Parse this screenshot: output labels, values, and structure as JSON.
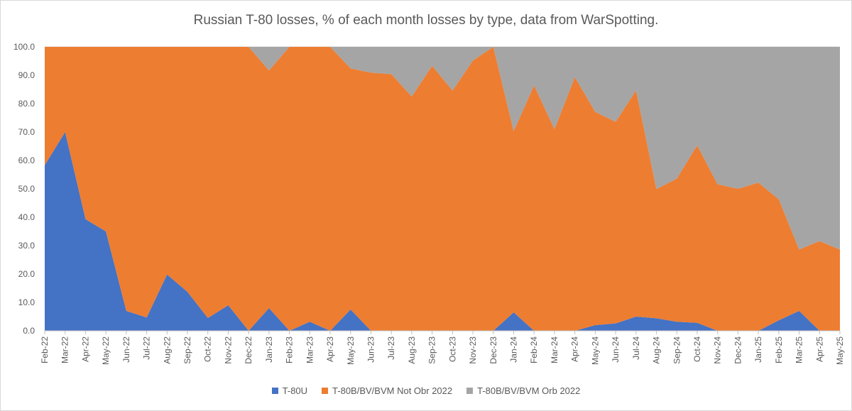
{
  "chart_data": {
    "type": "area",
    "stacked": true,
    "title": "Russian T-80 losses, % of each month losses by type, data from WarSpotting.",
    "xlabel": "",
    "ylabel": "",
    "ylim": [
      0,
      100
    ],
    "y_ticks": [
      "0.0",
      "10.0",
      "20.0",
      "30.0",
      "40.0",
      "50.0",
      "60.0",
      "70.0",
      "80.0",
      "90.0",
      "100.0"
    ],
    "categories": [
      "Feb-22",
      "Mar-22",
      "Apr-22",
      "May-22",
      "Jun-22",
      "Jul-22",
      "Aug-22",
      "Sep-22",
      "Oct-22",
      "Nov-22",
      "Dec-22",
      "Jan-23",
      "Feb-23",
      "Mar-23",
      "Apr-23",
      "May-23",
      "Jun-23",
      "Jul-23",
      "Aug-23",
      "Sep-23",
      "Oct-23",
      "Nov-23",
      "Dec-23",
      "Jan-24",
      "Feb-24",
      "Mar-24",
      "Apr-24",
      "May-24",
      "Jun-24",
      "Jul-24",
      "Aug-24",
      "Sep-24",
      "Oct-24",
      "Nov-24",
      "Dec-24",
      "Jan-25",
      "Feb-25",
      "Mar-25",
      "Apr-25",
      "May-25"
    ],
    "series": [
      {
        "name": "T-80U",
        "color": "#4472c4",
        "values": [
          58.3,
          70.0,
          39.3,
          35.0,
          7.0,
          4.7,
          19.8,
          13.7,
          4.5,
          9.0,
          0,
          8.0,
          0,
          3.2,
          0,
          7.5,
          0,
          0,
          0,
          0,
          0,
          0,
          0,
          6.5,
          0,
          0,
          0,
          2.0,
          2.6,
          5.0,
          4.4,
          3.2,
          2.8,
          0,
          0,
          0,
          3.7,
          7.0,
          0,
          0
        ]
      },
      {
        "name": "T-80B/BV/BVM Not Obr 2022",
        "color": "#ed7d31",
        "values": [
          41.7,
          30.0,
          60.7,
          65.0,
          93.0,
          95.3,
          80.2,
          86.3,
          95.5,
          91.0,
          100,
          83.7,
          100,
          96.8,
          100,
          84.9,
          90.9,
          90.4,
          82.5,
          93.3,
          84.6,
          95.2,
          100,
          63.8,
          86.4,
          71.0,
          89.3,
          75.1,
          71.0,
          79.7,
          45.5,
          50.4,
          62.5,
          51.6,
          50.0,
          52.2,
          42.6,
          21.6,
          31.6,
          28.6
        ]
      },
      {
        "name": "T-80B/BV/BVM Orb 2022",
        "color": "#a5a5a5",
        "values": [
          0,
          0,
          0,
          0,
          0,
          0,
          0,
          0,
          0,
          0,
          0,
          8.3,
          0,
          0,
          0,
          7.6,
          9.1,
          9.6,
          17.5,
          6.7,
          15.4,
          4.8,
          0,
          29.7,
          13.6,
          29.0,
          10.7,
          22.9,
          26.4,
          15.3,
          50.1,
          46.4,
          34.7,
          48.4,
          50.0,
          47.8,
          53.7,
          71.4,
          68.4,
          71.4
        ]
      }
    ],
    "legend_position": "bottom",
    "grid": true
  }
}
